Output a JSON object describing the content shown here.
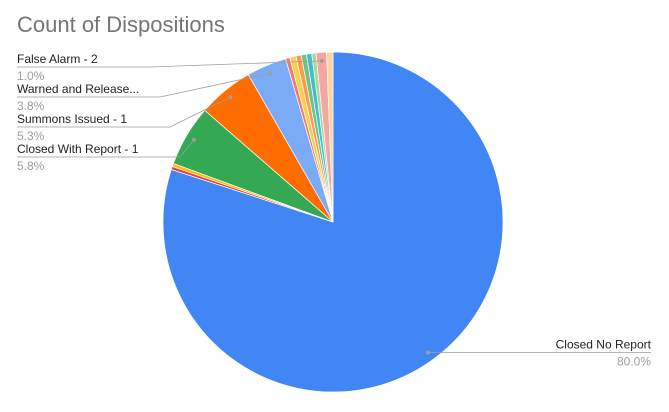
{
  "chart_data": {
    "type": "pie",
    "title": "Count of Dispositions",
    "categories": [
      "Closed No Report",
      null,
      null,
      "Closed With Report - 1",
      "Summons Issued - 1",
      "Warned and Release...",
      null,
      null,
      null,
      null,
      null,
      null,
      "False Alarm - 2",
      null
    ],
    "values": [
      80.0,
      0.3,
      0.3,
      5.8,
      5.3,
      3.8,
      0.4,
      0.6,
      0.5,
      0.5,
      0.5,
      0.4,
      1.0,
      0.6
    ],
    "value_labels": [
      "80.0%",
      null,
      null,
      "5.8%",
      "5.3%",
      "3.8%",
      null,
      null,
      null,
      null,
      null,
      null,
      "1.0%",
      null
    ],
    "colors": [
      "#4285f4",
      "#ea4335",
      "#fbbc04",
      "#34a853",
      "#ff6d01",
      "#7baaf7",
      "#f07b72",
      "#fcd04f",
      "#ff994d",
      "#71c287",
      "#46bdc6",
      "#a3d9a5",
      "#f4a6a0",
      "#fbd5a0"
    ]
  }
}
